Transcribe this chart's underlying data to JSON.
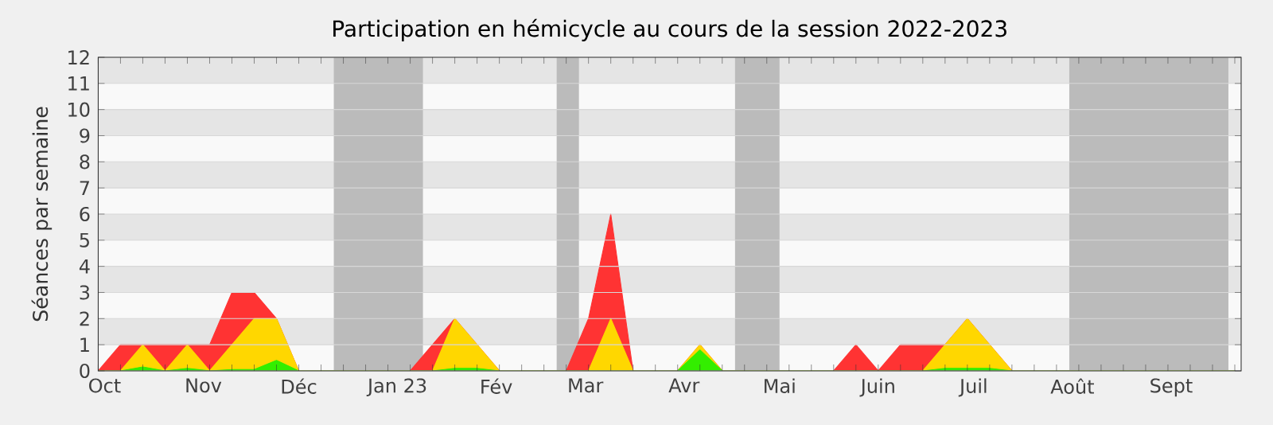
{
  "chart_data": {
    "type": "area",
    "title": "Participation en hémicycle au cours de la session 2022-2023",
    "ylabel": "Séances par semaine",
    "x": [
      "2022-09-29",
      "2022-10-06",
      "2022-10-13",
      "2022-10-20",
      "2022-10-27",
      "2022-11-03",
      "2022-11-10",
      "2022-11-17",
      "2022-11-24",
      "2022-12-01",
      "2022-12-08",
      "2022-12-15",
      "2022-12-22",
      "2022-12-29",
      "2023-01-05",
      "2023-01-12",
      "2023-01-19",
      "2023-01-26",
      "2023-02-02",
      "2023-02-09",
      "2023-02-16",
      "2023-02-23",
      "2023-03-02",
      "2023-03-09",
      "2023-03-16",
      "2023-03-23",
      "2023-03-30",
      "2023-04-06",
      "2023-04-13",
      "2023-04-20",
      "2023-04-27",
      "2023-05-04",
      "2023-05-11",
      "2023-05-18",
      "2023-05-25",
      "2023-06-01",
      "2023-06-08",
      "2023-06-15",
      "2023-06-22",
      "2023-06-29",
      "2023-07-06",
      "2023-07-13",
      "2023-07-20",
      "2023-07-27",
      "2023-08-03",
      "2023-08-10",
      "2023-08-17",
      "2023-08-24",
      "2023-08-31",
      "2023-09-07",
      "2023-09-14",
      "2023-09-21"
    ],
    "series": [
      {
        "color": "#ff3333",
        "values": [
          0,
          1,
          1,
          1,
          1,
          1,
          3,
          3,
          2,
          0,
          0,
          0,
          0,
          0,
          0,
          1,
          2,
          1,
          0,
          0,
          0,
          0,
          2,
          6,
          0,
          0,
          0,
          1,
          0,
          0,
          0,
          0,
          0,
          0,
          1,
          0,
          1,
          1,
          1,
          2,
          1,
          0,
          0,
          0,
          0,
          0,
          0,
          0,
          0,
          0,
          0,
          0
        ]
      },
      {
        "color": "#ffd700",
        "values": [
          0,
          0,
          1,
          0,
          1,
          0,
          1,
          2,
          2,
          0,
          0,
          0,
          0,
          0,
          0,
          0,
          2,
          1,
          0,
          0,
          0,
          0,
          0,
          2,
          0,
          0,
          0,
          1,
          0,
          0,
          0,
          0,
          0,
          0,
          0,
          0,
          0,
          0,
          1,
          2,
          1,
          0,
          0,
          0,
          0,
          0,
          0,
          0,
          0,
          0,
          0,
          0
        ]
      },
      {
        "color": "#33ee00",
        "values": [
          0,
          0,
          0.15,
          0,
          0.1,
          0,
          0.05,
          0.05,
          0.4,
          0,
          0,
          0,
          0,
          0,
          0,
          0,
          0.1,
          0.1,
          0,
          0,
          0,
          0,
          0,
          0,
          0,
          0,
          0,
          0.8,
          0,
          0,
          0,
          0,
          0,
          0,
          0,
          0,
          0,
          0,
          0.1,
          0.1,
          0.1,
          0,
          0,
          0,
          0,
          0,
          0,
          0,
          0,
          0,
          0,
          0
        ]
      }
    ],
    "xlim": [
      "2022-09-29",
      "2023-09-23"
    ],
    "xticks": [
      {
        "value": "2022-10-01",
        "label": "Oct"
      },
      {
        "value": "2022-11-01",
        "label": "Nov"
      },
      {
        "value": "2022-12-01",
        "label": "Déc"
      },
      {
        "value": "2023-01-01",
        "label": "Jan 23"
      },
      {
        "value": "2023-02-01",
        "label": "Fév"
      },
      {
        "value": "2023-03-01",
        "label": "Mar"
      },
      {
        "value": "2023-04-01",
        "label": "Avr"
      },
      {
        "value": "2023-05-01",
        "label": "Mai"
      },
      {
        "value": "2023-06-01",
        "label": "Juin"
      },
      {
        "value": "2023-07-01",
        "label": "Juil"
      },
      {
        "value": "2023-08-01",
        "label": "Août"
      },
      {
        "value": "2023-09-01",
        "label": "Sept"
      },
      {
        "value": "2022-09-29",
        "label": null
      },
      {
        "value": "2022-10-06",
        "label": null
      },
      {
        "value": "2022-10-13",
        "label": null
      },
      {
        "value": "2022-10-20",
        "label": null
      },
      {
        "value": "2022-10-27",
        "label": null
      },
      {
        "value": "2022-11-03",
        "label": null
      },
      {
        "value": "2022-11-10",
        "label": null
      },
      {
        "value": "2022-11-17",
        "label": null
      },
      {
        "value": "2022-11-24",
        "label": null
      },
      {
        "value": "2022-12-01",
        "label": null
      },
      {
        "value": "2022-12-08",
        "label": null
      },
      {
        "value": "2022-12-15",
        "label": null
      },
      {
        "value": "2022-12-22",
        "label": null
      },
      {
        "value": "2022-12-29",
        "label": null
      },
      {
        "value": "2023-01-05",
        "label": null
      },
      {
        "value": "2023-01-12",
        "label": null
      },
      {
        "value": "2023-01-19",
        "label": null
      },
      {
        "value": "2023-01-26",
        "label": null
      },
      {
        "value": "2023-02-02",
        "label": null
      },
      {
        "value": "2023-02-09",
        "label": null
      },
      {
        "value": "2023-02-16",
        "label": null
      },
      {
        "value": "2023-02-23",
        "label": null
      },
      {
        "value": "2023-03-02",
        "label": null
      },
      {
        "value": "2023-03-09",
        "label": null
      },
      {
        "value": "2023-03-16",
        "label": null
      },
      {
        "value": "2023-03-23",
        "label": null
      },
      {
        "value": "2023-03-30",
        "label": null
      },
      {
        "value": "2023-04-06",
        "label": null
      },
      {
        "value": "2023-04-13",
        "label": null
      },
      {
        "value": "2023-04-20",
        "label": null
      },
      {
        "value": "2023-04-27",
        "label": null
      },
      {
        "value": "2023-05-04",
        "label": null
      },
      {
        "value": "2023-05-11",
        "label": null
      },
      {
        "value": "2023-05-18",
        "label": null
      },
      {
        "value": "2023-05-25",
        "label": null
      },
      {
        "value": "2023-06-01",
        "label": null
      },
      {
        "value": "2023-06-08",
        "label": null
      },
      {
        "value": "2023-06-15",
        "label": null
      },
      {
        "value": "2023-06-22",
        "label": null
      },
      {
        "value": "2023-06-29",
        "label": null
      },
      {
        "value": "2023-07-06",
        "label": null
      },
      {
        "value": "2023-07-13",
        "label": null
      },
      {
        "value": "2023-07-20",
        "label": null
      },
      {
        "value": "2023-07-27",
        "label": null
      },
      {
        "value": "2023-08-03",
        "label": null
      },
      {
        "value": "2023-08-10",
        "label": null
      },
      {
        "value": "2023-08-17",
        "label": null
      },
      {
        "value": "2023-08-24",
        "label": null
      },
      {
        "value": "2023-08-31",
        "label": null
      },
      {
        "value": "2023-09-07",
        "label": null
      },
      {
        "value": "2023-09-14",
        "label": null
      },
      {
        "value": "2023-09-21",
        "label": null
      }
    ],
    "ylim": [
      0,
      12
    ],
    "yticks": [
      0,
      1,
      2,
      3,
      4,
      5,
      6,
      7,
      8,
      9,
      10,
      11,
      12
    ],
    "grid": "y",
    "bands": [
      {
        "axis": "x",
        "from": "2022-12-12",
        "to": "2023-01-09",
        "color": "#bbbbbb"
      },
      {
        "axis": "x",
        "from": "2023-02-20",
        "to": "2023-02-27",
        "color": "#bbbbbb"
      },
      {
        "axis": "x",
        "from": "2023-04-17",
        "to": "2023-05-01",
        "color": "#bbbbbb"
      },
      {
        "axis": "x",
        "from": "2023-07-31",
        "to": "2023-09-19",
        "color": "#bbbbbb"
      }
    ]
  }
}
